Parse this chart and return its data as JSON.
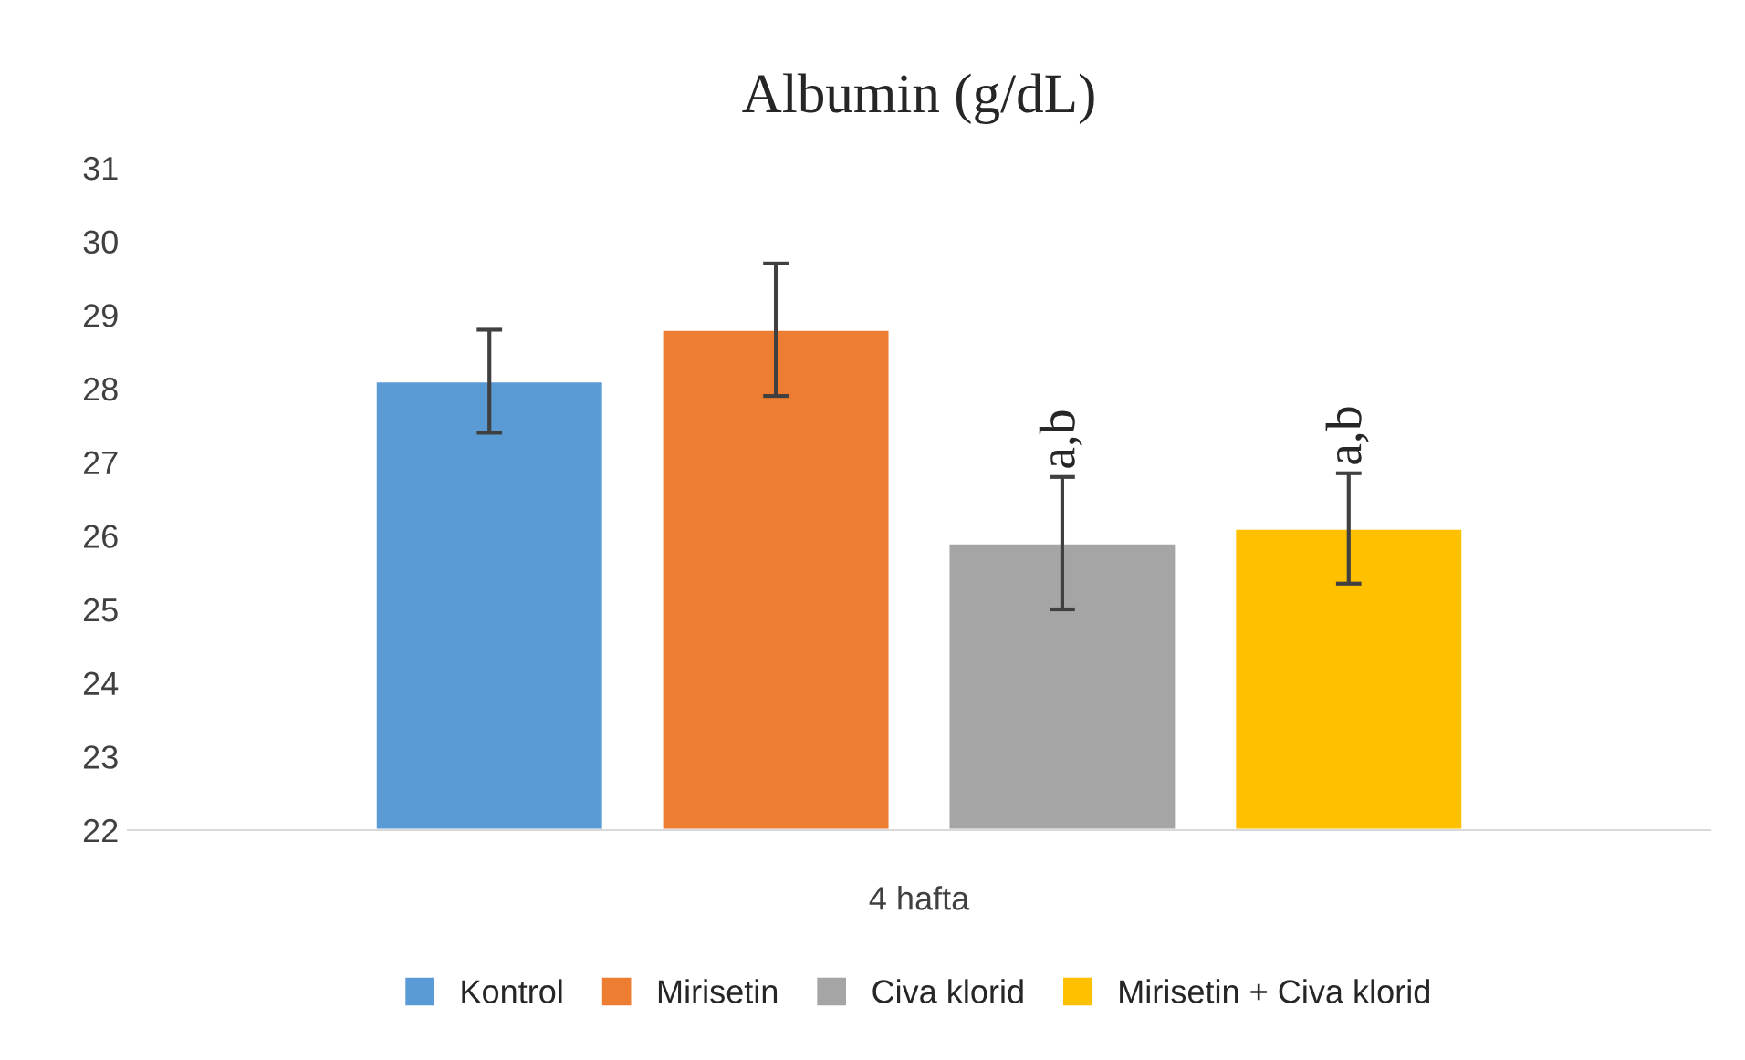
{
  "chart_data": {
    "type": "bar",
    "title": "Albumin (g/dL)",
    "categories": [
      "4 hafta"
    ],
    "series": [
      {
        "name": "Kontrol",
        "color": "#5b9bd5",
        "values": [
          28.1
        ],
        "errors": [
          0.7
        ]
      },
      {
        "name": "Mirisetin",
        "color": "#ed7d31",
        "values": [
          28.8
        ],
        "errors": [
          0.9
        ]
      },
      {
        "name": "Civa klorid",
        "color": "#a5a5a5",
        "values": [
          25.9
        ],
        "errors": [
          0.9
        ],
        "value_labels": [
          "a,b"
        ]
      },
      {
        "name": "Mirisetin + Civa klorid",
        "color": "#ffc000",
        "values": [
          26.1
        ],
        "errors": [
          0.75
        ],
        "value_labels": [
          "a,b"
        ]
      }
    ],
    "ylim": [
      22,
      31
    ],
    "yticks": [
      22,
      23,
      24,
      25,
      26,
      27,
      28,
      29,
      30,
      31
    ],
    "grid": false,
    "legend": "bottom"
  }
}
